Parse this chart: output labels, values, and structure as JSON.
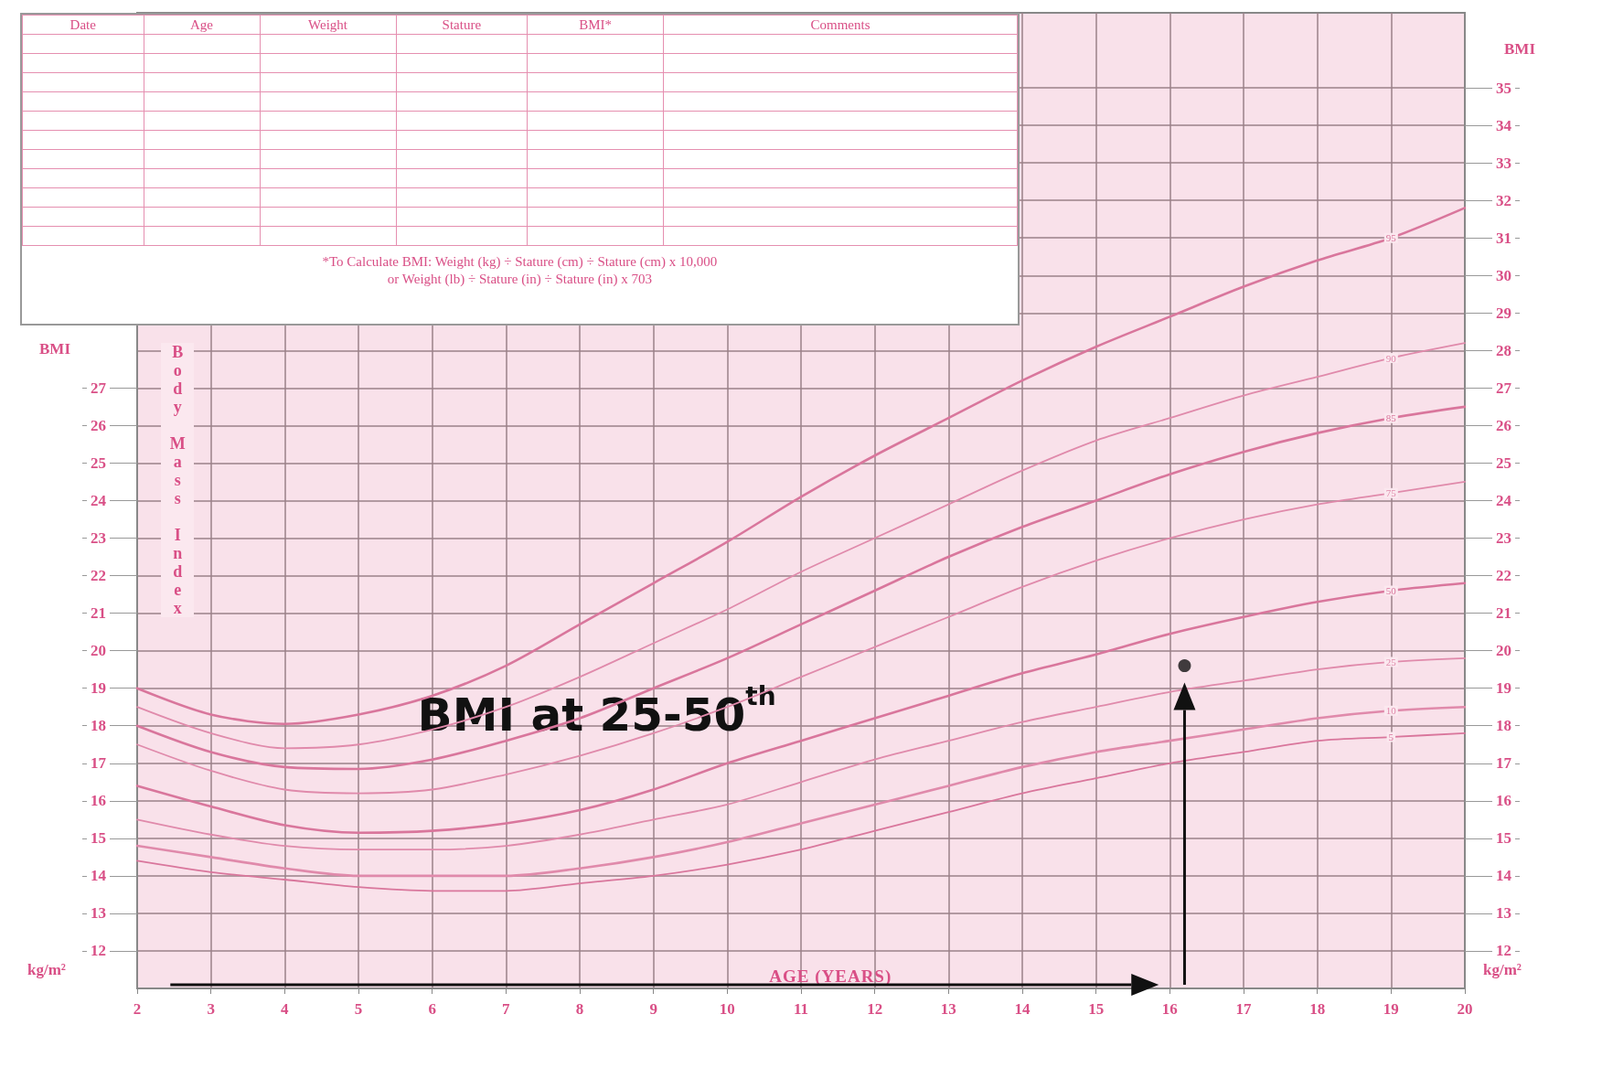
{
  "chart_data": {
    "type": "line",
    "xlabel": "AGE (YEARS)",
    "ylabel": "Body Mass Index",
    "x": [
      2,
      3,
      4,
      5,
      6,
      7,
      8,
      9,
      10,
      11,
      12,
      13,
      14,
      15,
      16,
      17,
      18,
      19,
      20
    ],
    "xlim": [
      2,
      20
    ],
    "xticks": [
      2,
      3,
      4,
      5,
      6,
      7,
      8,
      9,
      10,
      11,
      12,
      13,
      14,
      15,
      16,
      17,
      18,
      19,
      20
    ],
    "ylim": [
      11,
      37
    ],
    "yticks": [
      12,
      13,
      14,
      15,
      16,
      17,
      18,
      19,
      20,
      21,
      22,
      23,
      24,
      25,
      26,
      27
    ],
    "y2lim": [
      11,
      37
    ],
    "y2ticks": [
      12,
      13,
      14,
      15,
      16,
      17,
      18,
      19,
      20,
      21,
      22,
      23,
      24,
      25,
      26,
      27,
      28,
      29,
      30,
      31,
      32,
      33,
      34,
      35
    ],
    "grid": true,
    "legend": false,
    "marker": "none",
    "line_style": "solid",
    "series": [
      {
        "name": "95",
        "color": "#d9769c",
        "values": [
          19.0,
          18.3,
          18.05,
          18.3,
          18.8,
          19.6,
          20.7,
          21.8,
          22.9,
          24.1,
          25.2,
          26.2,
          27.2,
          28.1,
          28.9,
          29.7,
          30.4,
          31.0,
          31.8
        ]
      },
      {
        "name": "90",
        "color": "#e08aab",
        "values": [
          18.5,
          17.8,
          17.4,
          17.5,
          17.9,
          18.5,
          19.3,
          20.2,
          21.1,
          22.1,
          23.0,
          23.9,
          24.8,
          25.6,
          26.2,
          26.8,
          27.3,
          27.8,
          28.2
        ]
      },
      {
        "name": "85",
        "color": "#d9769c",
        "values": [
          18.0,
          17.3,
          16.9,
          16.85,
          17.1,
          17.6,
          18.2,
          19.0,
          19.8,
          20.7,
          21.6,
          22.5,
          23.3,
          24.0,
          24.7,
          25.3,
          25.8,
          26.2,
          26.5
        ]
      },
      {
        "name": "75",
        "color": "#e08aab",
        "values": [
          17.5,
          16.8,
          16.3,
          16.2,
          16.3,
          16.7,
          17.2,
          17.8,
          18.5,
          19.3,
          20.1,
          20.9,
          21.7,
          22.4,
          23.0,
          23.5,
          23.9,
          24.2,
          24.5
        ]
      },
      {
        "name": "50",
        "color": "#d9769c",
        "values": [
          16.4,
          15.85,
          15.35,
          15.15,
          15.2,
          15.4,
          15.75,
          16.3,
          17.0,
          17.6,
          18.2,
          18.8,
          19.4,
          19.9,
          20.45,
          20.9,
          21.3,
          21.6,
          21.8
        ]
      },
      {
        "name": "25",
        "color": "#e08aab",
        "values": [
          15.5,
          15.1,
          14.8,
          14.7,
          14.7,
          14.8,
          15.1,
          15.5,
          15.9,
          16.5,
          17.1,
          17.6,
          18.1,
          18.5,
          18.9,
          19.2,
          19.5,
          19.7,
          19.8
        ]
      },
      {
        "name": "10",
        "color": "#e08aab",
        "values": [
          14.8,
          14.5,
          14.2,
          14.0,
          14.0,
          14.0,
          14.2,
          14.5,
          14.9,
          15.4,
          15.9,
          16.4,
          16.9,
          17.3,
          17.6,
          17.9,
          18.2,
          18.4,
          18.5
        ]
      },
      {
        "name": "5",
        "color": "#d9769c",
        "values": [
          14.4,
          14.1,
          13.9,
          13.7,
          13.6,
          13.6,
          13.8,
          14.0,
          14.3,
          14.7,
          15.2,
          15.7,
          16.2,
          16.6,
          17.0,
          17.3,
          17.6,
          17.7,
          17.8
        ]
      },
      {
        "type": "scatter",
        "marker": "circle",
        "color": "#111111",
        "x": [
          16.2
        ],
        "values": [
          19.6
        ]
      }
    ],
    "annotations": [
      "Date",
      "Age",
      "Weight",
      "Stature",
      "BMI*",
      "Comments",
      "*To Calculate BMI: Weight (kg) ÷ Stature (cm) ÷ Stature (cm) x 10,000",
      "or Weight (lb) ÷ Stature (in) ÷ Stature (in) x 703",
      "BMI",
      "kg/m²",
      "BMI at 25-50$^{th}$"
    ]
  }
}
